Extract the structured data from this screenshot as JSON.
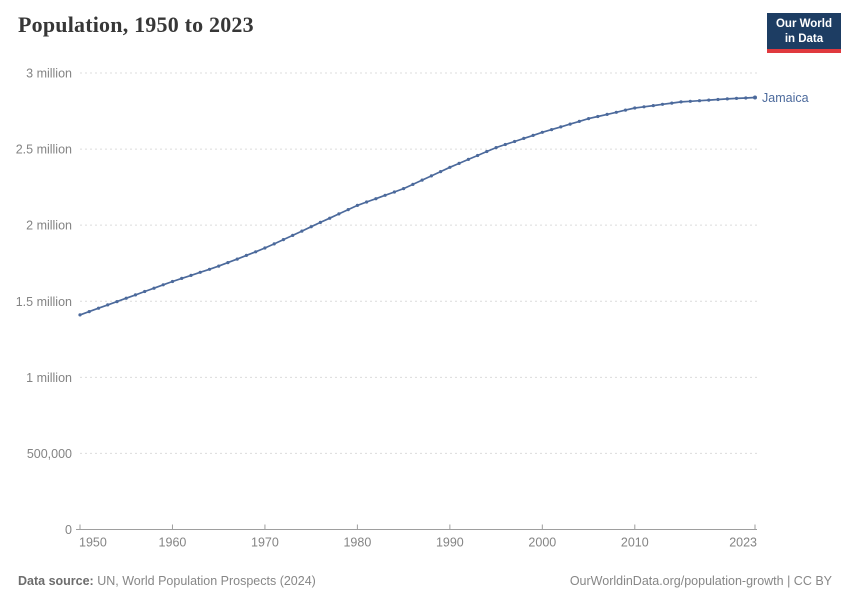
{
  "header": {
    "title": "Population, 1950 to 2023"
  },
  "logo": {
    "line1": "Our World",
    "line2": "in Data",
    "bg_color": "#1d3d63",
    "accent_color": "#e0393e"
  },
  "footer": {
    "source_label": "Data source:",
    "source_text": " UN, World Population Prospects (2024)",
    "credit": "OurWorldinData.org/population-growth | CC BY"
  },
  "chart_data": {
    "type": "line",
    "title": "Population, 1950 to 2023",
    "entity": "Jamaica",
    "line_color": "#4c6a9c",
    "grid": "horizontal-dashed",
    "legend_position": "end-of-line",
    "xlim": [
      1950,
      2023
    ],
    "ylim": [
      0,
      3000000
    ],
    "x": [
      1950,
      1951,
      1952,
      1953,
      1954,
      1955,
      1956,
      1957,
      1958,
      1959,
      1960,
      1961,
      1962,
      1963,
      1964,
      1965,
      1966,
      1967,
      1968,
      1969,
      1970,
      1971,
      1972,
      1973,
      1974,
      1975,
      1976,
      1977,
      1978,
      1979,
      1980,
      1981,
      1982,
      1983,
      1984,
      1985,
      1986,
      1987,
      1988,
      1989,
      1990,
      1991,
      1992,
      1993,
      1994,
      1995,
      1996,
      1997,
      1998,
      1999,
      2000,
      2001,
      2002,
      2003,
      2004,
      2005,
      2006,
      2007,
      2008,
      2009,
      2010,
      2011,
      2012,
      2013,
      2014,
      2015,
      2016,
      2017,
      2018,
      2019,
      2020,
      2021,
      2022,
      2023
    ],
    "series": [
      {
        "name": "Jamaica",
        "values": [
          1410000,
          1432000,
          1454000,
          1476000,
          1498000,
          1520000,
          1542000,
          1564000,
          1586000,
          1608000,
          1630000,
          1650000,
          1670000,
          1690000,
          1710000,
          1731000,
          1754000,
          1777000,
          1801000,
          1825000,
          1850000,
          1877000,
          1905000,
          1933000,
          1961000,
          1990000,
          2018000,
          2046000,
          2074000,
          2102000,
          2130000,
          2152000,
          2174000,
          2196000,
          2218000,
          2240000,
          2268000,
          2296000,
          2324000,
          2352000,
          2380000,
          2406000,
          2432000,
          2458000,
          2484000,
          2510000,
          2530000,
          2550000,
          2570000,
          2590000,
          2610000,
          2628000,
          2646000,
          2664000,
          2682000,
          2700000,
          2714000,
          2728000,
          2742000,
          2756000,
          2770000,
          2778000,
          2786000,
          2794000,
          2802000,
          2810000,
          2814000,
          2818000,
          2822000,
          2826000,
          2830000,
          2833000,
          2836000,
          2839000
        ]
      }
    ],
    "y_ticks": [
      {
        "value": 0,
        "label": "0"
      },
      {
        "value": 500000,
        "label": "500,000"
      },
      {
        "value": 1000000,
        "label": "1 million"
      },
      {
        "value": 1500000,
        "label": "1.5 million"
      },
      {
        "value": 2000000,
        "label": "2 million"
      },
      {
        "value": 2500000,
        "label": "2.5 million"
      },
      {
        "value": 3000000,
        "label": "3 million"
      }
    ],
    "x_ticks": [
      {
        "value": 1950,
        "label": "1950"
      },
      {
        "value": 1960,
        "label": "1960"
      },
      {
        "value": 1970,
        "label": "1970"
      },
      {
        "value": 1980,
        "label": "1980"
      },
      {
        "value": 1990,
        "label": "1990"
      },
      {
        "value": 2000,
        "label": "2000"
      },
      {
        "value": 2010,
        "label": "2010"
      },
      {
        "value": 2023,
        "label": "2023"
      }
    ]
  }
}
